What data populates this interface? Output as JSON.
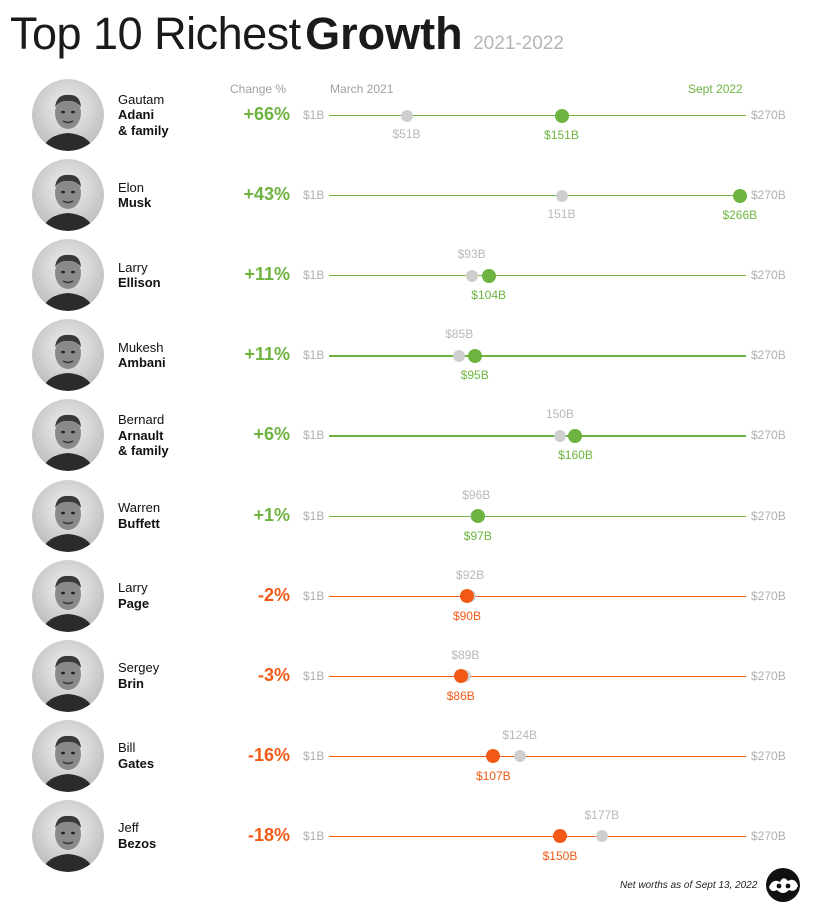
{
  "title": {
    "main": "Top 10 Richest",
    "bold": "Growth",
    "sub": "2021-2022"
  },
  "headers": {
    "change": "Change %",
    "start": "March 2021",
    "end": "Sept 2022"
  },
  "footnote": "Net worths as of Sept 13, 2022",
  "colors": {
    "positive": "#6db33f",
    "negative": "#f25a16",
    "start_dot": "#cfcfcf"
  },
  "chart_data": {
    "type": "dumbbell",
    "xlim": [
      1,
      270
    ],
    "axis_min_label": "$1B",
    "axis_max_label": "$270B",
    "rows": [
      {
        "first": "Gautam",
        "last": [
          "Adani",
          "& family"
        ],
        "change": "+66%",
        "start": 51,
        "end": 151,
        "start_label": "$51B",
        "end_label": "$151B",
        "photo": "person-photo"
      },
      {
        "first": "Elon",
        "last": [
          "Musk"
        ],
        "change": "+43%",
        "start": 151,
        "end": 266,
        "start_label": "151B",
        "end_label": "$266B",
        "photo": "person-photo"
      },
      {
        "first": "Larry",
        "last": [
          "Ellison"
        ],
        "change": "+11%",
        "start": 93,
        "end": 104,
        "start_label": "$93B",
        "end_label": "$104B",
        "photo": "person-photo"
      },
      {
        "first": "Mukesh",
        "last": [
          "Ambani"
        ],
        "change": "+11%",
        "start": 85,
        "end": 95,
        "start_label": "$85B",
        "end_label": "$95B",
        "photo": "person-photo"
      },
      {
        "first": "Bernard",
        "last": [
          "Arnault",
          "& family"
        ],
        "change": "+6%",
        "start": 150,
        "end": 160,
        "start_label": "150B",
        "end_label": "$160B",
        "photo": "person-photo"
      },
      {
        "first": "Warren",
        "last": [
          "Buffett"
        ],
        "change": "+1%",
        "start": 96,
        "end": 97,
        "start_label": "$96B",
        "end_label": "$97B",
        "photo": "person-photo"
      },
      {
        "first": "Larry",
        "last": [
          "Page"
        ],
        "change": "-2%",
        "start": 92,
        "end": 90,
        "start_label": "$92B",
        "end_label": "$90B",
        "photo": "person-photo"
      },
      {
        "first": "Sergey",
        "last": [
          "Brin"
        ],
        "change": "-3%",
        "start": 89,
        "end": 86,
        "start_label": "$89B",
        "end_label": "$86B",
        "photo": "person-photo"
      },
      {
        "first": "Bill",
        "last": [
          "Gates"
        ],
        "change": "-16%",
        "start": 124,
        "end": 107,
        "start_label": "$124B",
        "end_label": "$107B",
        "photo": "person-photo"
      },
      {
        "first": "Jeff",
        "last": [
          "Bezos"
        ],
        "change": "-18%",
        "start": 177,
        "end": 150,
        "start_label": "$177B",
        "end_label": "$150B",
        "photo": "person-photo"
      }
    ]
  }
}
